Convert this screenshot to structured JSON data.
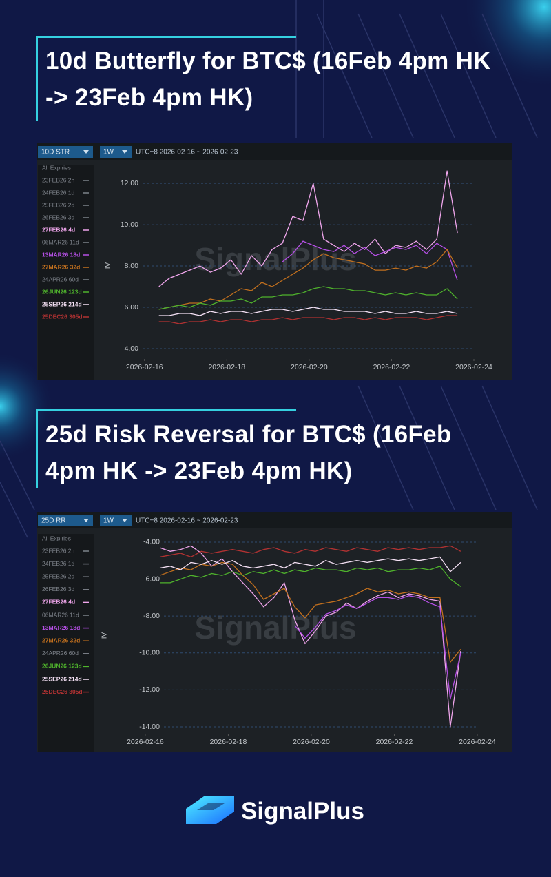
{
  "brand": "SignalPlus",
  "chart_data": [
    {
      "type": "line",
      "title": "10d Butterfly for BTC$ (16Feb 4pm HK -> 23Feb 4pm HK)",
      "selector": "10D STR",
      "period": "1W",
      "range_label": "UTC+8 2026-02-16 ~ 2026-02-23",
      "ylabel": "IV",
      "watermark": "SignalPlus",
      "legend_title": "All Expiries",
      "grid": true,
      "xlim": [
        -1.2,
        8.92
      ],
      "ylim": [
        2.5,
        12.87
      ],
      "xticks": [
        {
          "value": 0,
          "label": "2026-02-16"
        },
        {
          "value": 2,
          "label": "2026-02-18"
        },
        {
          "value": 4,
          "label": "2026-02-20"
        },
        {
          "value": 6,
          "label": "2026-02-22"
        },
        {
          "value": 8,
          "label": "2026-02-24"
        }
      ],
      "yticks": [
        {
          "value": 4,
          "label": "4.00"
        },
        {
          "value": 6,
          "label": "6.00"
        },
        {
          "value": 8,
          "label": "8.00"
        },
        {
          "value": 10,
          "label": "10.00"
        },
        {
          "value": 12,
          "label": "12.00"
        }
      ],
      "x": [
        0.35,
        0.6,
        0.85,
        1.1,
        1.35,
        1.6,
        1.85,
        2.1,
        2.35,
        2.6,
        2.85,
        3.1,
        3.35,
        3.6,
        3.85,
        4.1,
        4.35,
        4.6,
        4.85,
        5.1,
        5.35,
        5.6,
        5.85,
        6.1,
        6.35,
        6.6,
        6.85,
        7.1,
        7.35,
        7.6
      ],
      "series": [
        {
          "name": "23FEB26 2h",
          "color": "#7d828a"
        },
        {
          "name": "24FEB26 1d",
          "color": "#7d828a"
        },
        {
          "name": "25FEB26 2d",
          "color": "#7d828a"
        },
        {
          "name": "26FEB26 3d",
          "color": "#7d828a"
        },
        {
          "name": "27FEB26 4d",
          "color": "#f0a6ec",
          "values": [
            7.0,
            7.4,
            7.6,
            7.8,
            8.0,
            7.7,
            7.9,
            8.3,
            7.6,
            8.5,
            8.0,
            8.8,
            9.1,
            10.4,
            10.2,
            12.0,
            9.3,
            9.0,
            8.7,
            9.1,
            8.8,
            9.3,
            8.6,
            9.0,
            8.9,
            9.2,
            8.8,
            9.3,
            12.6,
            9.6
          ]
        },
        {
          "name": "06MAR26 11d",
          "color": "#7d828a"
        },
        {
          "name": "13MAR26 18d",
          "color": "#b650e6",
          "values": [
            null,
            null,
            null,
            null,
            null,
            null,
            null,
            null,
            null,
            null,
            null,
            null,
            8.2,
            8.6,
            9.2,
            9.0,
            8.8,
            8.7,
            9.0,
            8.6,
            8.9,
            8.5,
            8.7,
            8.9,
            8.8,
            9.0,
            8.6,
            9.1,
            8.8,
            7.3
          ]
        },
        {
          "name": "27MAR26 32d",
          "color": "#c2701e",
          "values": [
            5.9,
            6.0,
            6.1,
            6.2,
            6.2,
            6.4,
            6.3,
            6.6,
            6.9,
            6.8,
            7.2,
            7.0,
            7.3,
            7.6,
            7.9,
            8.3,
            8.6,
            8.4,
            8.3,
            8.2,
            8.1,
            7.8,
            7.8,
            7.9,
            7.8,
            8.0,
            7.9,
            8.2,
            8.8,
            7.9
          ]
        },
        {
          "name": "24APR26 60d",
          "color": "#7d828a"
        },
        {
          "name": "26JUN26 123d",
          "color": "#4fb32c",
          "values": [
            5.9,
            6.0,
            6.1,
            6.0,
            6.2,
            6.1,
            6.3,
            6.3,
            6.4,
            6.2,
            6.5,
            6.5,
            6.6,
            6.6,
            6.7,
            6.9,
            7.0,
            6.9,
            6.9,
            6.8,
            6.8,
            6.7,
            6.6,
            6.7,
            6.6,
            6.7,
            6.6,
            6.6,
            6.9,
            6.4
          ]
        },
        {
          "name": "25SEP26 214d",
          "color": "#f6e2f6",
          "values": [
            5.6,
            5.6,
            5.7,
            5.7,
            5.6,
            5.8,
            5.7,
            5.8,
            5.8,
            5.7,
            5.8,
            5.9,
            5.9,
            5.8,
            5.9,
            6.0,
            5.9,
            5.9,
            5.8,
            5.8,
            5.8,
            5.7,
            5.8,
            5.7,
            5.7,
            5.8,
            5.7,
            5.7,
            5.8,
            5.7
          ]
        },
        {
          "name": "25DEC26 305d",
          "color": "#b23232",
          "values": [
            5.3,
            5.3,
            5.2,
            5.3,
            5.3,
            5.4,
            5.3,
            5.4,
            5.4,
            5.3,
            5.4,
            5.4,
            5.5,
            5.4,
            5.5,
            5.5,
            5.5,
            5.4,
            5.5,
            5.5,
            5.4,
            5.5,
            5.4,
            5.5,
            5.5,
            5.5,
            5.4,
            5.5,
            5.6,
            5.6
          ]
        }
      ]
    },
    {
      "type": "line",
      "title": "25d Risk Reversal for BTC$ (16Feb 4pm HK -> 23Feb 4pm HK)",
      "selector": "25D RR",
      "period": "1W",
      "range_label": "UTC+8 2026-02-16 ~ 2026-02-23",
      "ylabel": "IV",
      "watermark": "SignalPlus",
      "legend_title": "All Expiries",
      "grid": true,
      "xlim": [
        -1.26,
        8.83
      ],
      "ylim": [
        -15.38,
        -3.48
      ],
      "xticks": [
        {
          "value": 0,
          "label": "2026-02-16"
        },
        {
          "value": 2,
          "label": "2026-02-18"
        },
        {
          "value": 4,
          "label": "2026-02-20"
        },
        {
          "value": 6,
          "label": "2026-02-22"
        },
        {
          "value": 8,
          "label": "2026-02-24"
        }
      ],
      "yticks": [
        {
          "value": -4,
          "label": "-4.00"
        },
        {
          "value": -6,
          "label": "-6.00"
        },
        {
          "value": -8,
          "label": "-8.00"
        },
        {
          "value": -10,
          "label": "-10.00"
        },
        {
          "value": -12,
          "label": "-12.00"
        },
        {
          "value": -14,
          "label": "-14.00"
        }
      ],
      "x": [
        0.35,
        0.6,
        0.85,
        1.1,
        1.35,
        1.6,
        1.85,
        2.1,
        2.35,
        2.6,
        2.85,
        3.1,
        3.35,
        3.6,
        3.85,
        4.1,
        4.35,
        4.6,
        4.85,
        5.1,
        5.35,
        5.6,
        5.85,
        6.1,
        6.35,
        6.6,
        6.85,
        7.1,
        7.35,
        7.6
      ],
      "series": [
        {
          "name": "23FEB26 2h",
          "color": "#7d828a"
        },
        {
          "name": "24FEB26 1d",
          "color": "#7d828a"
        },
        {
          "name": "25FEB26 2d",
          "color": "#7d828a"
        },
        {
          "name": "26FEB26 3d",
          "color": "#7d828a"
        },
        {
          "name": "27FEB26 4d",
          "color": "#f0a6ec",
          "values": [
            -4.3,
            -4.5,
            -4.4,
            -4.2,
            -4.6,
            -5.3,
            -4.9,
            -5.6,
            -6.2,
            -6.8,
            -7.5,
            -7.0,
            -6.2,
            -8.2,
            -9.5,
            -8.8,
            -8.0,
            -7.8,
            -7.3,
            -7.6,
            -7.2,
            -6.9,
            -6.7,
            -7.0,
            -6.8,
            -6.9,
            -7.1,
            -7.2,
            -14.0,
            -9.9
          ]
        },
        {
          "name": "06MAR26 11d",
          "color": "#7d828a"
        },
        {
          "name": "13MAR26 18d",
          "color": "#b650e6",
          "values": [
            null,
            null,
            null,
            null,
            null,
            null,
            null,
            null,
            null,
            null,
            null,
            null,
            null,
            -8.5,
            -9.2,
            -8.6,
            -7.9,
            -7.7,
            -7.4,
            -7.6,
            -7.3,
            -7.0,
            -7.0,
            -7.1,
            -6.9,
            -7.0,
            -7.3,
            -7.5,
            -12.5,
            -10.0
          ]
        },
        {
          "name": "27MAR26 32d",
          "color": "#c2701e",
          "values": [
            -5.8,
            -5.6,
            -5.4,
            -5.5,
            -5.2,
            -5.3,
            -5.1,
            -5.2,
            -5.8,
            -6.3,
            -7.1,
            -6.8,
            -6.5,
            -7.5,
            -8.1,
            -7.4,
            -7.3,
            -7.2,
            -7.0,
            -6.8,
            -6.5,
            -6.7,
            -6.6,
            -6.8,
            -6.7,
            -6.8,
            -7.0,
            -7.0,
            -10.5,
            -9.8
          ]
        },
        {
          "name": "24APR26 60d",
          "color": "#7d828a"
        },
        {
          "name": "26JUN26 123d",
          "color": "#4fb32c",
          "values": [
            -6.2,
            -6.2,
            -6.0,
            -5.8,
            -5.9,
            -5.7,
            -5.8,
            -5.6,
            -5.8,
            -5.6,
            -5.7,
            -5.5,
            -5.7,
            -5.5,
            -5.6,
            -5.4,
            -5.5,
            -5.5,
            -5.6,
            -5.4,
            -5.5,
            -5.4,
            -5.6,
            -5.5,
            -5.5,
            -5.4,
            -5.5,
            -5.3,
            -6.0,
            -6.4
          ]
        },
        {
          "name": "25SEP26 214d",
          "color": "#f6e2f6",
          "values": [
            -5.4,
            -5.3,
            -5.5,
            -5.1,
            -5.2,
            -5.0,
            -5.2,
            -5.0,
            -5.3,
            -5.4,
            -5.3,
            -5.2,
            -5.4,
            -5.1,
            -5.2,
            -5.3,
            -5.0,
            -5.2,
            -5.1,
            -5.0,
            -5.1,
            -5.0,
            -4.9,
            -5.0,
            -4.9,
            -5.0,
            -4.9,
            -4.8,
            -5.6,
            -5.1
          ]
        },
        {
          "name": "25DEC26 305d",
          "color": "#b23232",
          "values": [
            -4.8,
            -4.7,
            -4.6,
            -4.8,
            -4.5,
            -4.6,
            -4.5,
            -4.4,
            -4.5,
            -4.6,
            -4.4,
            -4.3,
            -4.5,
            -4.6,
            -4.4,
            -4.5,
            -4.3,
            -4.4,
            -4.5,
            -4.3,
            -4.4,
            -4.5,
            -4.3,
            -4.4,
            -4.3,
            -4.4,
            -4.3,
            -4.3,
            -4.2,
            -4.5
          ]
        }
      ]
    }
  ]
}
